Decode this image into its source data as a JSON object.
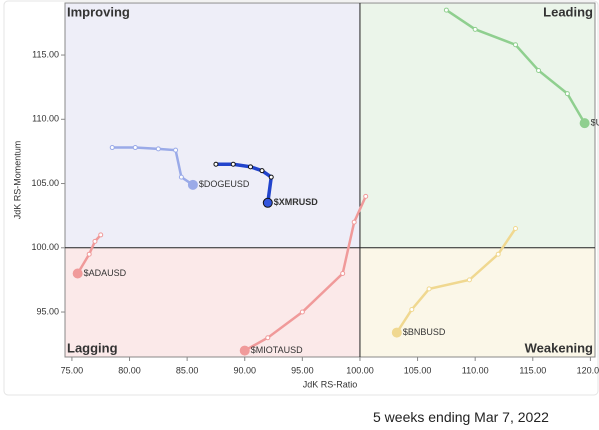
{
  "chart_data": {
    "type": "rrg",
    "x_label": "JdK RS-Ratio",
    "y_label": "JdK RS-Momentum",
    "quadrants": {
      "improving": "Improving",
      "leading": "Leading",
      "lagging": "Lagging",
      "weakening": "Weakening"
    },
    "footer": "5 weeks ending Mar 7, 2022",
    "xlim": [
      74.4,
      120.4
    ],
    "ylim": [
      91.5,
      119.05
    ],
    "xticks": [
      {
        "value": 75,
        "label": "75.00"
      },
      {
        "value": 80,
        "label": "80.00"
      },
      {
        "value": 85,
        "label": "85.00"
      },
      {
        "value": 90,
        "label": "90.00"
      },
      {
        "value": 95,
        "label": "95.00"
      },
      {
        "value": 100,
        "label": "100.00"
      },
      {
        "value": 105,
        "label": "105.00"
      },
      {
        "value": 110,
        "label": "110.00"
      },
      {
        "value": 115,
        "label": "115.00"
      },
      {
        "value": 120,
        "label": "120.00"
      }
    ],
    "yticks": [
      {
        "value": 95,
        "label": "95.00"
      },
      {
        "value": 100,
        "label": "100.00"
      },
      {
        "value": 105,
        "label": "105.00"
      },
      {
        "value": 110,
        "label": "110.00"
      },
      {
        "value": 115,
        "label": "115.00"
      }
    ],
    "series": [
      {
        "name": "$DOGEUSD",
        "color": "#9aaae8",
        "highlight": false,
        "x": [
          78.5,
          80.5,
          82.5,
          84,
          84.5,
          85.5
        ],
        "values": [
          107.8,
          107.8,
          107.7,
          107.6,
          105.5,
          104.9
        ]
      },
      {
        "name": "$USDTUSD",
        "color": "#8fcf8f",
        "highlight": false,
        "x": [
          107.5,
          110,
          113.5,
          115.5,
          118,
          119.5
        ],
        "values": [
          118.5,
          117,
          115.8,
          113.8,
          112,
          109.7
        ]
      },
      {
        "name": "$BNBUSD",
        "color": "#f0d890",
        "highlight": false,
        "x": [
          113.5,
          112,
          109.5,
          106,
          104.5,
          103.2
        ],
        "values": [
          101.5,
          99.5,
          97.5,
          96.8,
          95.2,
          93.4
        ]
      },
      {
        "name": "$ADAUSD",
        "color": "#f09a9a",
        "highlight": false,
        "x": [
          77.5,
          77,
          76.5,
          75.5
        ],
        "values": [
          101,
          100.5,
          99.5,
          98
        ]
      },
      {
        "name": "$MIOTAUSD",
        "color": "#f09a9a",
        "highlight": false,
        "x": [
          100.5,
          99.5,
          98.5,
          95,
          92,
          90
        ],
        "values": [
          104,
          102,
          98,
          95,
          93,
          92
        ]
      },
      {
        "name": "$XMRUSD",
        "color": "#2244cc",
        "highlight": true,
        "x": [
          87.5,
          89,
          90.5,
          91.5,
          92.3,
          92
        ],
        "values": [
          106.5,
          106.5,
          106.3,
          106,
          105.5,
          103.5
        ]
      }
    ]
  }
}
